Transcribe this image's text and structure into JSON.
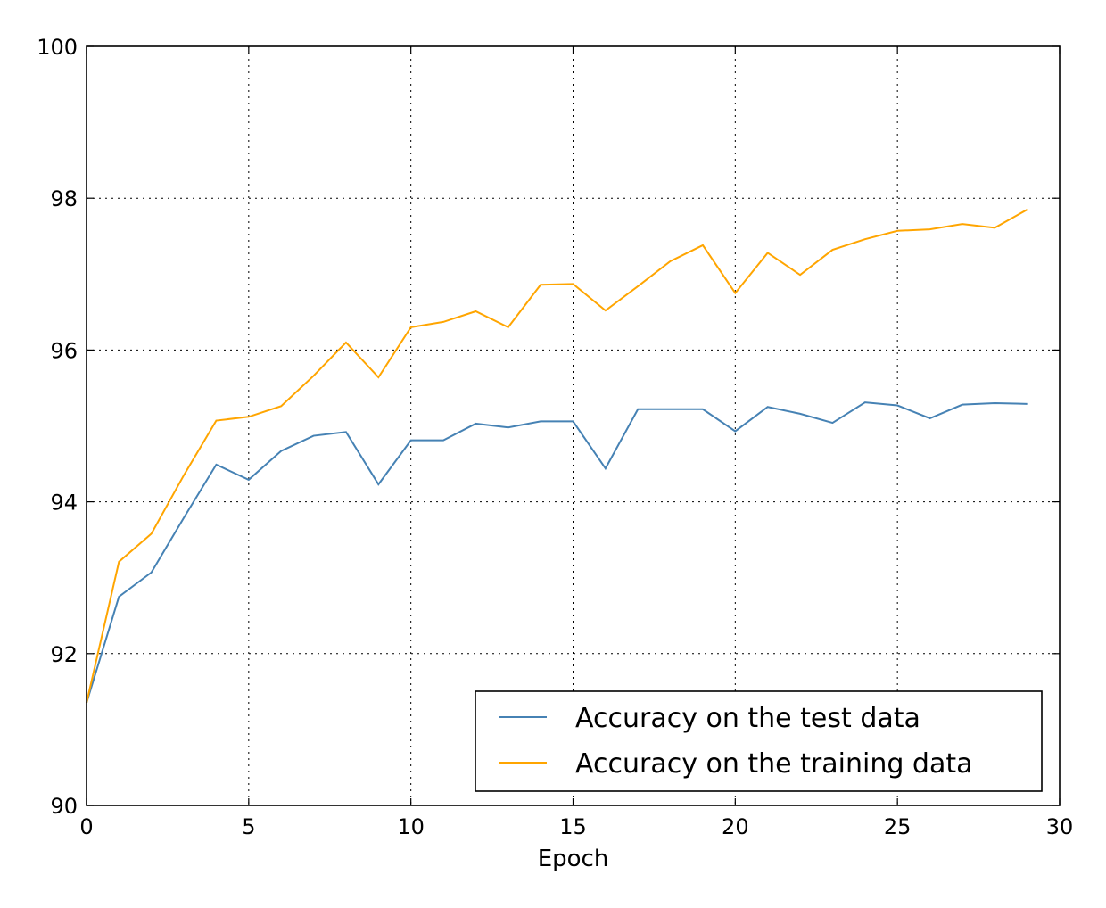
{
  "chart_data": {
    "type": "line",
    "title": "",
    "xlabel": "Epoch",
    "ylabel": "",
    "xlim": [
      0,
      30
    ],
    "ylim": [
      90,
      100
    ],
    "xticks": [
      0,
      5,
      10,
      15,
      20,
      25,
      30
    ],
    "yticks": [
      90,
      92,
      94,
      96,
      98,
      100
    ],
    "grid": true,
    "legend_position": "lower-right",
    "x": [
      0,
      1,
      2,
      3,
      4,
      5,
      6,
      7,
      8,
      9,
      10,
      11,
      12,
      13,
      14,
      15,
      16,
      17,
      18,
      19,
      20,
      21,
      22,
      23,
      24,
      25,
      26,
      27,
      28,
      29
    ],
    "series": [
      {
        "name": "Accuracy on the test data",
        "color": "#4682b4",
        "values": [
          91.35,
          92.75,
          93.07,
          93.79,
          94.49,
          94.29,
          94.67,
          94.87,
          94.92,
          94.23,
          94.81,
          94.81,
          95.03,
          94.98,
          95.06,
          95.06,
          94.44,
          95.22,
          95.22,
          95.22,
          94.93,
          95.25,
          95.16,
          95.04,
          95.31,
          95.27,
          95.1,
          95.28,
          95.3,
          95.29
        ]
      },
      {
        "name": "Accuracy on the training data",
        "color": "#ffa500",
        "values": [
          91.35,
          93.21,
          93.58,
          94.35,
          95.07,
          95.12,
          95.26,
          95.66,
          96.1,
          95.64,
          96.3,
          96.37,
          96.51,
          96.3,
          96.86,
          96.87,
          96.52,
          96.84,
          97.17,
          97.38,
          96.75,
          97.28,
          96.99,
          97.32,
          97.46,
          97.57,
          97.59,
          97.66,
          97.61,
          97.85
        ]
      }
    ]
  }
}
